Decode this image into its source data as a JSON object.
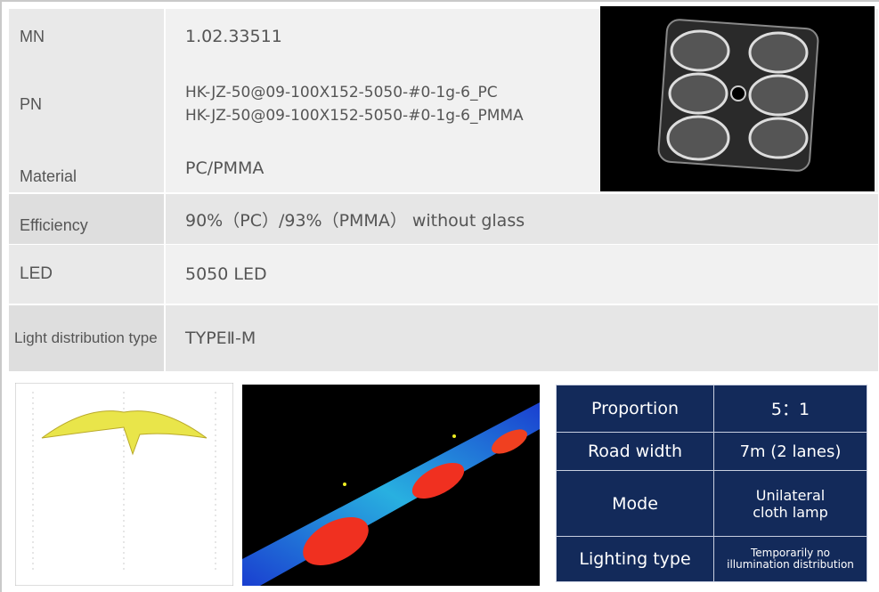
{
  "rows": [
    {
      "label": "MN",
      "value": "1.02.33511"
    },
    {
      "label": "PN",
      "value": [
        "HK-JZ-50@09-100X152-5050-#0-1g-6_PC",
        "HK-JZ-50@09-100X152-5050-#0-1g-6_PMMA"
      ]
    },
    {
      "label": "Material",
      "value": "PC/PMMA"
    },
    {
      "label": "Efficiency",
      "value": "90%（PC）/93%（PMMA） without glass"
    },
    {
      "label": "LED",
      "value": "5050 LED"
    },
    {
      "label": "Light distribution type",
      "value": "TYPEⅡ-M"
    }
  ],
  "lighting": [
    {
      "label": "Proportion",
      "value": "5：1"
    },
    {
      "label": "Road width",
      "value": "7m (2 lanes)"
    },
    {
      "label": "Mode",
      "value": "Unilateral cloth lamp"
    },
    {
      "label": "Lighting type",
      "value": "Temporarily no illumination distribution"
    }
  ]
}
